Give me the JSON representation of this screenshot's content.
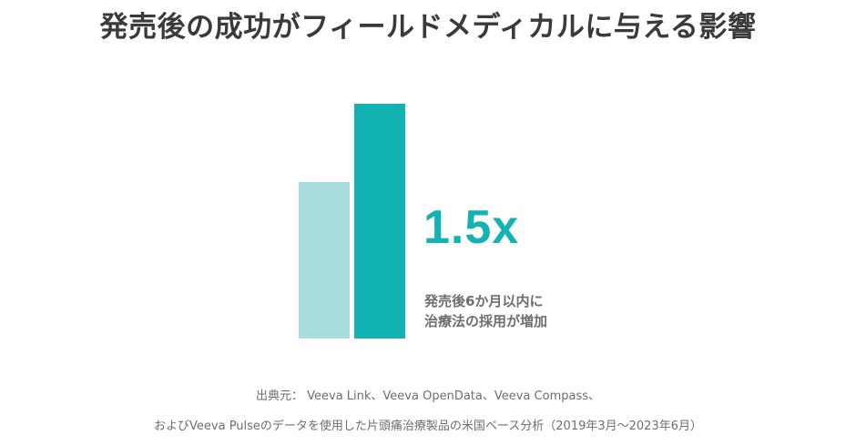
{
  "title": "発売後の成功がフィールドメディカルに与える影響",
  "chart_data": {
    "type": "bar",
    "categories": [
      "",
      ""
    ],
    "values": [
      1.0,
      1.5
    ],
    "colors": [
      "#a9dcdf",
      "#14b3b3"
    ],
    "annotation": "1.5x",
    "caption_lines": [
      "発売後6か月以内に",
      "治療法の採用が増加"
    ]
  },
  "source_lines": [
    "出典元： Veeva Link、Veeva OpenData、Veeva Compass、",
    "およびVeeva Pulseのデータを使用した片頭痛治療製品の米国ベース分析（2019年3月～2023年6月）"
  ]
}
